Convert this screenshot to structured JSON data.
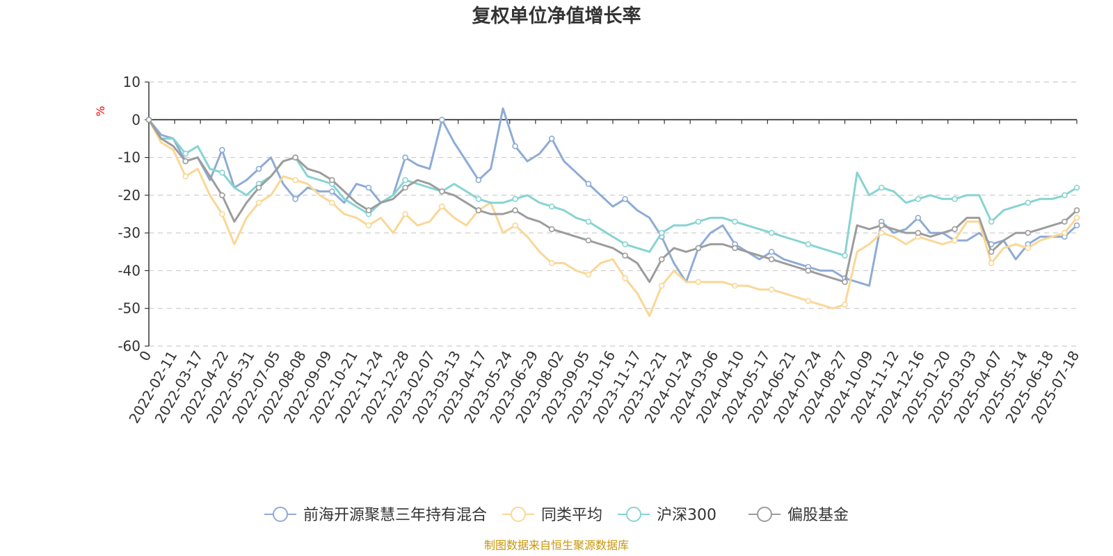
{
  "chart_data": {
    "type": "line",
    "title": "复权单位净值增长率",
    "ylabel": "%",
    "source": "制图数据来自恒生聚源数据库",
    "ylim": [
      -60,
      10
    ],
    "yticks": [
      10,
      0,
      -10,
      -20,
      -30,
      -40,
      -50,
      -60
    ],
    "y_tick_labels": [
      "10",
      "0",
      "-10",
      "-20",
      "-30",
      "-40",
      "-50",
      "-60"
    ],
    "grid": true,
    "legend_position": "bottom",
    "x_tick_labels": [
      "0",
      "2022-02-11",
      "2022-03-17",
      "2022-04-22",
      "2022-05-31",
      "2022-07-05",
      "2022-08-08",
      "2022-09-09",
      "2022-10-21",
      "2022-11-24",
      "2022-12-28",
      "2023-02-07",
      "2023-03-13",
      "2023-04-17",
      "2023-05-24",
      "2023-06-29",
      "2023-08-02",
      "2023-09-05",
      "2023-10-16",
      "2023-11-17",
      "2023-12-21",
      "2024-01-24",
      "2024-03-06",
      "2024-04-10",
      "2024-05-17",
      "2024-06-21",
      "2024-07-24",
      "2024-08-27",
      "2024-10-09",
      "2024-11-12",
      "2024-12-16",
      "2025-01-20",
      "2025-03-03",
      "2025-04-07",
      "2025-05-14",
      "2025-06-18",
      "2025-07-18"
    ],
    "series": [
      {
        "name": "前海开源聚慧三年持有混合",
        "color": "#8eabd6",
        "values": [
          0,
          -4,
          -5,
          -11,
          -10,
          -16,
          -8,
          -18,
          -16,
          -13,
          -10,
          -17,
          -21,
          -18,
          -19,
          -19,
          -22,
          -17,
          -18,
          -22,
          -20,
          -10,
          -12,
          -13,
          0,
          -6,
          -11,
          -16,
          -13,
          3,
          -7,
          -11,
          -9,
          -5,
          -11,
          -14,
          -17,
          -20,
          -23,
          -21,
          -24,
          -26,
          -31,
          -38,
          -43,
          -34,
          -30,
          -28,
          -33,
          -35,
          -37,
          -35,
          -37,
          -38,
          -39,
          -40,
          -40,
          -42,
          -43,
          -44,
          -27,
          -30,
          -29,
          -26,
          -30,
          -30,
          -32,
          -32,
          -30,
          -33,
          -32,
          -37,
          -33,
          -31,
          -31,
          -31,
          -28
        ]
      },
      {
        "name": "同类平均",
        "color": "#fad795",
        "values": [
          0,
          -6,
          -8,
          -15,
          -13,
          -20,
          -25,
          -33,
          -26,
          -22,
          -20,
          -15,
          -16,
          -17,
          -20,
          -22,
          -25,
          -26,
          -28,
          -26,
          -30,
          -25,
          -28,
          -27,
          -23,
          -26,
          -28,
          -24,
          -22,
          -30,
          -28,
          -31,
          -35,
          -38,
          -38,
          -40,
          -41,
          -38,
          -37,
          -42,
          -46,
          -52,
          -44,
          -40,
          -43,
          -43,
          -43,
          -43,
          -44,
          -44,
          -45,
          -45,
          -46,
          -47,
          -48,
          -49,
          -50,
          -49,
          -35,
          -33,
          -30,
          -31,
          -33,
          -31,
          -32,
          -33,
          -32,
          -27,
          -27,
          -38,
          -34,
          -33,
          -34,
          -32,
          -31,
          -30,
          -26
        ]
      },
      {
        "name": "沪深300",
        "color": "#86d4d2",
        "values": [
          0,
          -5,
          -5,
          -9,
          -7,
          -13,
          -14,
          -18,
          -20,
          -17,
          -15,
          -11,
          -10,
          -15,
          -16,
          -17,
          -21,
          -23,
          -25,
          -22,
          -20,
          -16,
          -17,
          -18,
          -19,
          -17,
          -19,
          -21,
          -22,
          -22,
          -21,
          -20,
          -22,
          -23,
          -24,
          -26,
          -27,
          -29,
          -31,
          -33,
          -34,
          -35,
          -30,
          -28,
          -28,
          -27,
          -26,
          -26,
          -27,
          -28,
          -29,
          -30,
          -31,
          -32,
          -33,
          -34,
          -35,
          -36,
          -14,
          -20,
          -18,
          -19,
          -22,
          -21,
          -20,
          -21,
          -21,
          -20,
          -20,
          -27,
          -24,
          -23,
          -22,
          -21,
          -21,
          -20,
          -18
        ]
      },
      {
        "name": "偏股基金",
        "color": "#9c9c9c",
        "values": [
          0,
          -5,
          -7,
          -11,
          -10,
          -15,
          -20,
          -27,
          -22,
          -18,
          -15,
          -11,
          -10,
          -13,
          -14,
          -16,
          -19,
          -22,
          -24,
          -22,
          -21,
          -18,
          -16,
          -17,
          -19,
          -20,
          -22,
          -24,
          -25,
          -25,
          -24,
          -26,
          -27,
          -29,
          -30,
          -31,
          -32,
          -33,
          -34,
          -36,
          -38,
          -43,
          -37,
          -34,
          -35,
          -34,
          -33,
          -33,
          -34,
          -35,
          -36,
          -37,
          -38,
          -39,
          -40,
          -41,
          -42,
          -43,
          -28,
          -29,
          -28,
          -29,
          -30,
          -30,
          -31,
          -30,
          -29,
          -26,
          -26,
          -35,
          -32,
          -30,
          -30,
          -29,
          -28,
          -27,
          -24
        ]
      }
    ]
  }
}
